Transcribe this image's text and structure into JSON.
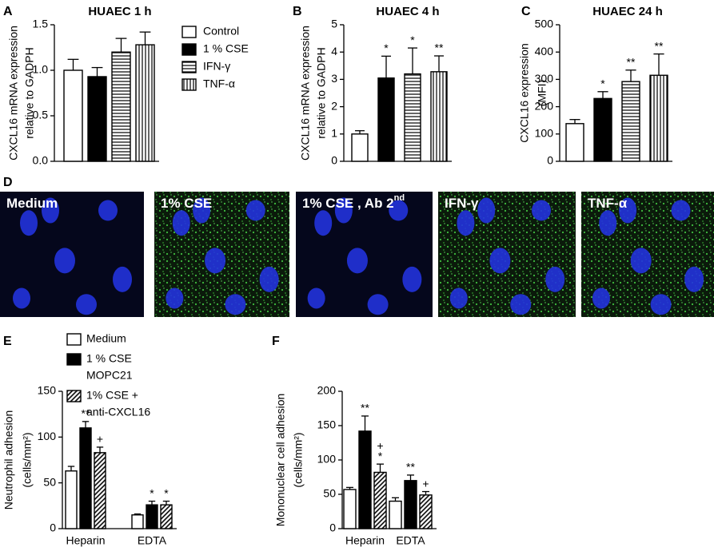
{
  "chart_data": [
    {
      "type": "bar",
      "panel": "A",
      "title": "HUAEC 1 h",
      "ylabel": [
        "CXCL16 mRNA expression",
        "relative to GADPH"
      ],
      "ylim": [
        0,
        1.5
      ],
      "yticks": [
        {
          "value": 0,
          "label": "0.0"
        },
        0.5,
        {
          "value": 1,
          "label": "1.0"
        },
        1.5
      ],
      "series": [
        {
          "name": "Control",
          "color": "#ffffff",
          "pattern": "solid",
          "values": [
            1.0
          ],
          "errors": [
            0.12
          ]
        },
        {
          "name": "1 % CSE",
          "color": "#000000",
          "pattern": "solid",
          "values": [
            0.93
          ],
          "errors": [
            0.1
          ]
        },
        {
          "name": "IFN-γ",
          "color": "#ffffff",
          "pattern": "horizontal",
          "values": [
            1.2
          ],
          "errors": [
            0.15
          ]
        },
        {
          "name": "TNF-α",
          "color": "#ffffff",
          "pattern": "vertical",
          "values": [
            1.28
          ],
          "errors": [
            0.14
          ]
        }
      ]
    },
    {
      "type": "bar",
      "panel": "B",
      "title": "HUAEC 4 h",
      "ylabel": [
        "CXCL16 mRNA expression",
        "relative to GADPH"
      ],
      "ylim": [
        0,
        5
      ],
      "yticks": [
        0,
        1,
        2,
        3,
        4,
        5
      ],
      "series": [
        {
          "color": "#ffffff",
          "pattern": "solid",
          "values": [
            1.0
          ],
          "errors": [
            0.12
          ],
          "annotations": [
            null
          ]
        },
        {
          "color": "#000000",
          "pattern": "solid",
          "values": [
            3.05
          ],
          "errors": [
            0.8
          ],
          "annotations": [
            [
              "*"
            ]
          ]
        },
        {
          "color": "#ffffff",
          "pattern": "horizontal",
          "values": [
            3.2
          ],
          "errors": [
            0.95
          ],
          "annotations": [
            [
              "*"
            ]
          ]
        },
        {
          "color": "#ffffff",
          "pattern": "vertical",
          "values": [
            3.28
          ],
          "errors": [
            0.58
          ],
          "annotations": [
            [
              "**"
            ]
          ]
        }
      ]
    },
    {
      "type": "bar",
      "panel": "C",
      "title": "HUAEC 24 h",
      "ylabel": [
        "CXCL16 expression",
        "(MFI)"
      ],
      "ylim": [
        0,
        500
      ],
      "yticks": [
        0,
        100,
        200,
        300,
        400,
        500
      ],
      "series": [
        {
          "color": "#ffffff",
          "pattern": "solid",
          "values": [
            138
          ],
          "errors": [
            15
          ],
          "annotations": [
            null
          ]
        },
        {
          "color": "#000000",
          "pattern": "solid",
          "values": [
            230
          ],
          "errors": [
            25
          ],
          "annotations": [
            [
              "*"
            ]
          ]
        },
        {
          "color": "#ffffff",
          "pattern": "horizontal",
          "values": [
            292
          ],
          "errors": [
            42
          ],
          "annotations": [
            [
              "**"
            ]
          ]
        },
        {
          "color": "#ffffff",
          "pattern": "vertical",
          "values": [
            315
          ],
          "errors": [
            78
          ],
          "annotations": [
            [
              "**"
            ]
          ]
        }
      ]
    },
    {
      "type": "bar",
      "panel": "E",
      "ylabel": [
        "Neutrophil adhesion",
        "(cells/mm²)"
      ],
      "categories": [
        "Heparin",
        "EDTA"
      ],
      "ylim": [
        0,
        150
      ],
      "yticks": [
        0,
        50,
        100,
        150
      ],
      "series": [
        {
          "name": [
            "Medium"
          ],
          "color": "#ffffff",
          "pattern": "solid",
          "values": [
            63,
            15
          ],
          "errors": [
            5,
            1
          ],
          "annotations": [
            null,
            null
          ]
        },
        {
          "name": [
            "1 % CSE",
            "MOPC21"
          ],
          "color": "#000000",
          "pattern": "solid",
          "values": [
            110,
            26
          ],
          "errors": [
            7,
            4
          ],
          "annotations": [
            [
              "**"
            ],
            [
              "*"
            ]
          ]
        },
        {
          "name": [
            "1% CSE +",
            "anti-CXCL16"
          ],
          "color": "#ffffff",
          "pattern": "diagonal",
          "values": [
            83,
            26
          ],
          "errors": [
            6,
            4
          ],
          "annotations": [
            [
              "+"
            ],
            [
              "*"
            ]
          ]
        }
      ]
    },
    {
      "type": "bar",
      "panel": "F",
      "ylabel": [
        "Mononuclear cell adhesion",
        "(cells/mm²)"
      ],
      "categories": [
        "Heparin",
        "EDTA"
      ],
      "ylim": [
        0,
        200
      ],
      "yticks": [
        0,
        50,
        100,
        150,
        200
      ],
      "series": [
        {
          "color": "#ffffff",
          "pattern": "solid",
          "values": [
            57,
            40
          ],
          "errors": [
            3,
            5
          ],
          "annotations": [
            null,
            null
          ]
        },
        {
          "color": "#000000",
          "pattern": "solid",
          "values": [
            142,
            70
          ],
          "errors": [
            22,
            8
          ],
          "annotations": [
            [
              "**"
            ],
            [
              "**"
            ]
          ]
        },
        {
          "color": "#ffffff",
          "pattern": "diagonal",
          "values": [
            82,
            49
          ],
          "errors": [
            12,
            5
          ],
          "annotations": [
            [
              "+",
              "*"
            ],
            [
              "+"
            ]
          ]
        }
      ]
    }
  ],
  "images": {
    "panel": "D",
    "labels": [
      {
        "text": "Medium"
      },
      {
        "text": "1% CSE"
      },
      {
        "text": "1% CSE , Ab 2",
        "sup": "nd"
      },
      {
        "text": "IFN-γ"
      },
      {
        "text": "TNF-α"
      }
    ]
  }
}
